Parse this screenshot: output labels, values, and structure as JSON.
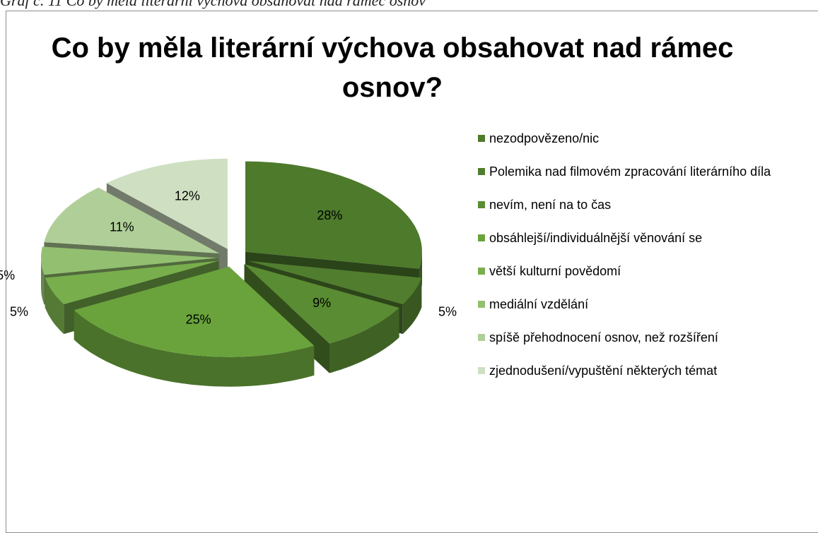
{
  "caption": "Graf č. 11 Co by měla literární výchova obsahovat nad rámec osnov",
  "chart_data": {
    "type": "pie",
    "title": "Co by měla literární výchova obsahovat nad rámec osnov?",
    "categories": [
      "nezodpovězeno/nic",
      "Polemika nad filmovém zpracování literárního díla",
      "nevím, není na to čas",
      "obsáhlejší/individuálnější věnování se",
      "větší kulturní povědomí",
      "mediální vzdělání",
      "spíšě přehodnocení osnov, než rozšíření",
      "zjednodušení/vypuštění některých témat"
    ],
    "values": [
      28,
      5,
      9,
      25,
      5,
      5,
      11,
      12
    ],
    "value_labels": [
      "28%",
      "5%",
      "9%",
      "25%",
      "5%",
      "5%",
      "11%",
      "12%"
    ],
    "colors": [
      "#4d7a2b",
      "#517d2f",
      "#5a8c33",
      "#6aa33c",
      "#78ae4c",
      "#93bf71",
      "#b0cf98",
      "#cfe0c2"
    ],
    "legend": "right"
  }
}
